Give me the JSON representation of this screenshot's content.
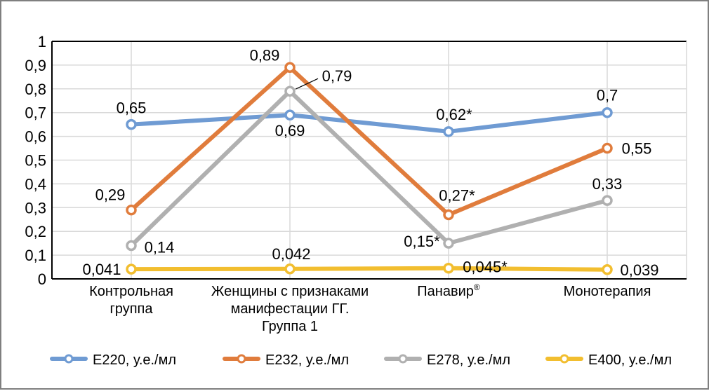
{
  "chart_data": {
    "type": "line",
    "title": "",
    "xlabel": "",
    "ylabel": "",
    "ylim": [
      0,
      1
    ],
    "yticks": [
      "0",
      "0,1",
      "0,2",
      "0,3",
      "0,4",
      "0,5",
      "0,6",
      "0,7",
      "0,8",
      "0,9",
      "1"
    ],
    "grid": true,
    "legend_position": "bottom",
    "categories": [
      {
        "lines": [
          "Контрольная",
          "группа"
        ]
      },
      {
        "lines": [
          "Женщины с признаками",
          "манифестации ГГ.",
          "Группа 1"
        ]
      },
      {
        "lines": [
          "Панавир"
        ],
        "sup": "®"
      },
      {
        "lines": [
          "Монотерапия"
        ]
      }
    ],
    "series": [
      {
        "name": "E220, у.е./мл",
        "color": "#6f9bd3",
        "values": [
          0.65,
          0.69,
          0.62,
          0.7
        ],
        "labels": [
          "0,65",
          "0,69",
          "0,62*",
          "0,7"
        ]
      },
      {
        "name": "E232, у.е./мл",
        "color": "#e07c3c",
        "values": [
          0.29,
          0.89,
          0.27,
          0.55
        ],
        "labels": [
          "0,29",
          "0,89",
          "0,27*",
          "0,55"
        ]
      },
      {
        "name": "E278, у.е./мл",
        "color": "#b0b0b0",
        "values": [
          0.14,
          0.79,
          0.15,
          0.33
        ],
        "labels": [
          "0,14",
          "0,79",
          "0,15*",
          "0,33"
        ]
      },
      {
        "name": "E400, у.е./мл",
        "color": "#f2be2f",
        "values": [
          0.041,
          0.042,
          0.045,
          0.039
        ],
        "labels": [
          "0,041",
          "0,042",
          "0,045*",
          "0,039"
        ]
      }
    ]
  }
}
